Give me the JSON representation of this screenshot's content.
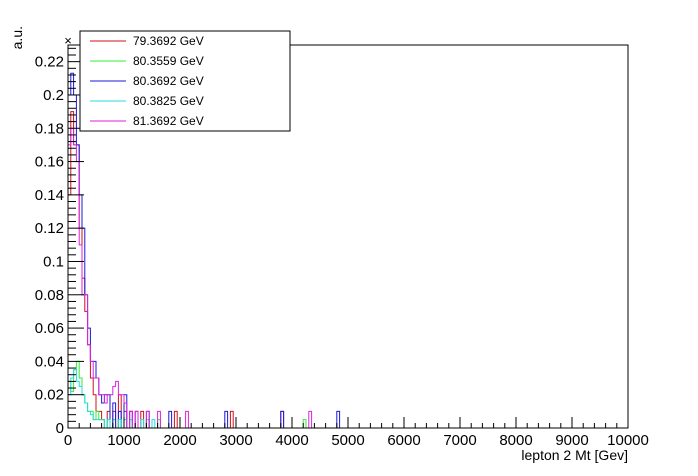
{
  "chart_data": {
    "type": "histogram",
    "xlabel": "lepton 2 Mt [Gev]",
    "ylabel": "a.u.",
    "exponent_marker": "×",
    "xlim": [
      0,
      10000
    ],
    "ylim": [
      0,
      0.23
    ],
    "bin_width": 50,
    "x_ticks": [
      0,
      1000,
      2000,
      3000,
      4000,
      5000,
      6000,
      7000,
      8000,
      9000,
      10000
    ],
    "x_tick_labels": [
      "0",
      "1000",
      "2000",
      "3000",
      "4000",
      "5000",
      "6000",
      "7000",
      "8000",
      "9000",
      "10000"
    ],
    "y_ticks": [
      0,
      0.02,
      0.04,
      0.06,
      0.08,
      0.1,
      0.12,
      0.14,
      0.16,
      0.18,
      0.2,
      0.22
    ],
    "y_tick_labels": [
      "0",
      "0.02",
      "0.04",
      "0.06",
      "0.08",
      "0.1",
      "0.12",
      "0.14",
      "0.16",
      "0.18",
      "0.2",
      "0.22"
    ],
    "legend_position": "top-left",
    "grid": false,
    "series": [
      {
        "name": "79.3692 GeV",
        "color": "#d0101a",
        "bins": [
          [
            0,
            0.14
          ],
          [
            50,
            0.19
          ],
          [
            100,
            0.17
          ],
          [
            150,
            0.17
          ],
          [
            200,
            0.12
          ],
          [
            250,
            0.09
          ],
          [
            300,
            0.07
          ],
          [
            350,
            0.05
          ],
          [
            400,
            0.03
          ],
          [
            450,
            0.02
          ],
          [
            500,
            0.01
          ],
          [
            550,
            0.01
          ],
          [
            600,
            0.005
          ],
          [
            700,
            0.01
          ],
          [
            800,
            0.01
          ],
          [
            900,
            0.02
          ],
          [
            1000,
            0.01
          ],
          [
            1100,
            0.01
          ],
          [
            1300,
            0.01
          ],
          [
            1900,
            0.01
          ],
          [
            2900,
            0.01
          ],
          [
            3800,
            0.01
          ]
        ]
      },
      {
        "name": "80.3559 GeV",
        "color": "#33ee33",
        "bins": [
          [
            0,
            0.028
          ],
          [
            50,
            0.022
          ],
          [
            100,
            0.035
          ],
          [
            150,
            0.04
          ],
          [
            200,
            0.03
          ],
          [
            250,
            0.02
          ],
          [
            300,
            0.015
          ],
          [
            350,
            0.01
          ],
          [
            400,
            0.01
          ],
          [
            450,
            0.005
          ],
          [
            500,
            0.01
          ],
          [
            550,
            0.005
          ],
          [
            600,
            0.005
          ],
          [
            700,
            0.005
          ],
          [
            800,
            0.005
          ],
          [
            900,
            0.005
          ],
          [
            1000,
            0.005
          ],
          [
            1100,
            0.005
          ],
          [
            1400,
            0.005
          ],
          [
            1600,
            0.005
          ],
          [
            4200,
            0.005
          ]
        ]
      },
      {
        "name": "80.3692 GeV",
        "color": "#1a1adc",
        "bins": [
          [
            0,
            0.2
          ],
          [
            50,
            0.213
          ],
          [
            100,
            0.2
          ],
          [
            150,
            0.17
          ],
          [
            200,
            0.14
          ],
          [
            250,
            0.12
          ],
          [
            300,
            0.08
          ],
          [
            350,
            0.06
          ],
          [
            400,
            0.04
          ],
          [
            450,
            0.04
          ],
          [
            500,
            0.03
          ],
          [
            550,
            0.02
          ],
          [
            600,
            0.015
          ],
          [
            650,
            0.02
          ],
          [
            700,
            0.02
          ],
          [
            800,
            0.015
          ],
          [
            900,
            0.01
          ],
          [
            1000,
            0.02
          ],
          [
            1100,
            0.01
          ],
          [
            1200,
            0.01
          ],
          [
            1400,
            0.01
          ],
          [
            1800,
            0.01
          ],
          [
            2800,
            0.01
          ],
          [
            3800,
            0.01
          ],
          [
            4800,
            0.01
          ]
        ]
      },
      {
        "name": "80.3825 GeV",
        "color": "#22dddd",
        "bins": [
          [
            0,
            0.02
          ],
          [
            50,
            0.03
          ],
          [
            100,
            0.035
          ],
          [
            150,
            0.028
          ],
          [
            200,
            0.025
          ],
          [
            250,
            0.02
          ],
          [
            300,
            0.015
          ],
          [
            350,
            0.01
          ],
          [
            400,
            0.008
          ],
          [
            450,
            0.005
          ],
          [
            500,
            0.005
          ],
          [
            550,
            0.005
          ],
          [
            600,
            0.005
          ],
          [
            700,
            0.005
          ],
          [
            900,
            0.005
          ],
          [
            1000,
            0.005
          ],
          [
            1100,
            0.005
          ],
          [
            1300,
            0.005
          ],
          [
            1500,
            0.005
          ]
        ]
      },
      {
        "name": "81.3692 GeV",
        "color": "#dd22dd",
        "bins": [
          [
            0,
            0.17
          ],
          [
            50,
            0.18
          ],
          [
            100,
            0.17
          ],
          [
            150,
            0.16
          ],
          [
            200,
            0.11
          ],
          [
            250,
            0.08
          ],
          [
            300,
            0.08
          ],
          [
            350,
            0.05
          ],
          [
            400,
            0.04
          ],
          [
            450,
            0.03
          ],
          [
            500,
            0.03
          ],
          [
            550,
            0.02
          ],
          [
            600,
            0.02
          ],
          [
            650,
            0.015
          ],
          [
            700,
            0.02
          ],
          [
            750,
            0.02
          ],
          [
            800,
            0.025
          ],
          [
            850,
            0.028
          ],
          [
            900,
            0.02
          ],
          [
            950,
            0.02
          ],
          [
            1000,
            0.015
          ],
          [
            1100,
            0.01
          ],
          [
            1200,
            0.01
          ],
          [
            1400,
            0.01
          ],
          [
            1600,
            0.01
          ],
          [
            2100,
            0.01
          ],
          [
            4300,
            0.01
          ]
        ]
      }
    ]
  }
}
